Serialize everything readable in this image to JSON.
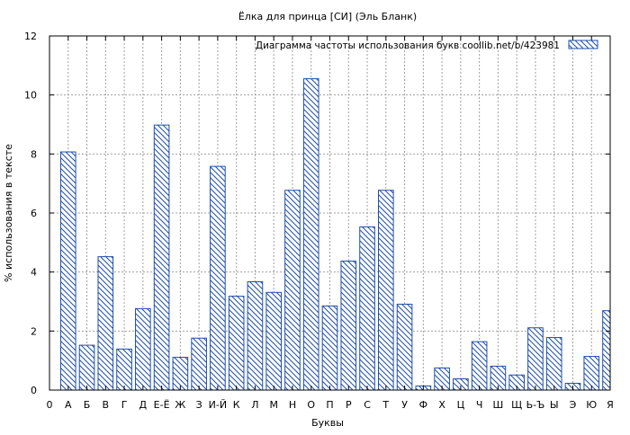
{
  "colors": {
    "bar_stroke": "#1f4fa8",
    "grid": "#a0a0a0",
    "axis": "#000000",
    "background": "#ffffff"
  },
  "chart_data": {
    "type": "bar",
    "title": "Ёлка для принца [СИ] (Эль Бланк)",
    "xlabel": "Буквы",
    "ylabel": "% использования в тексте",
    "legend": {
      "label": "Диаграмма частоты использования букв  coollib.net/b/423981",
      "position": "top-right"
    },
    "ylim": [
      0,
      12
    ],
    "yticks": [
      0,
      2,
      4,
      6,
      8,
      10,
      12
    ],
    "grid": true,
    "categories": [
      "0",
      "А",
      "Б",
      "В",
      "Г",
      "Д",
      "Е-Ё",
      "Ж",
      "З",
      "И-Й",
      "К",
      "Л",
      "М",
      "Н",
      "О",
      "П",
      "Р",
      "С",
      "Т",
      "У",
      "Ф",
      "Х",
      "Ц",
      "Ч",
      "Ш",
      "Щ",
      "Ь-Ъ",
      "Ы",
      "Э",
      "Ю",
      "Я"
    ],
    "values": [
      0,
      8.07,
      1.52,
      4.52,
      1.39,
      2.76,
      8.98,
      1.11,
      1.76,
      7.58,
      3.18,
      3.67,
      3.31,
      6.77,
      10.55,
      2.85,
      4.37,
      5.53,
      6.77,
      2.91,
      0.14,
      0.75,
      0.38,
      1.64,
      0.81,
      0.51,
      2.11,
      1.78,
      0.23,
      1.14,
      2.69
    ]
  }
}
